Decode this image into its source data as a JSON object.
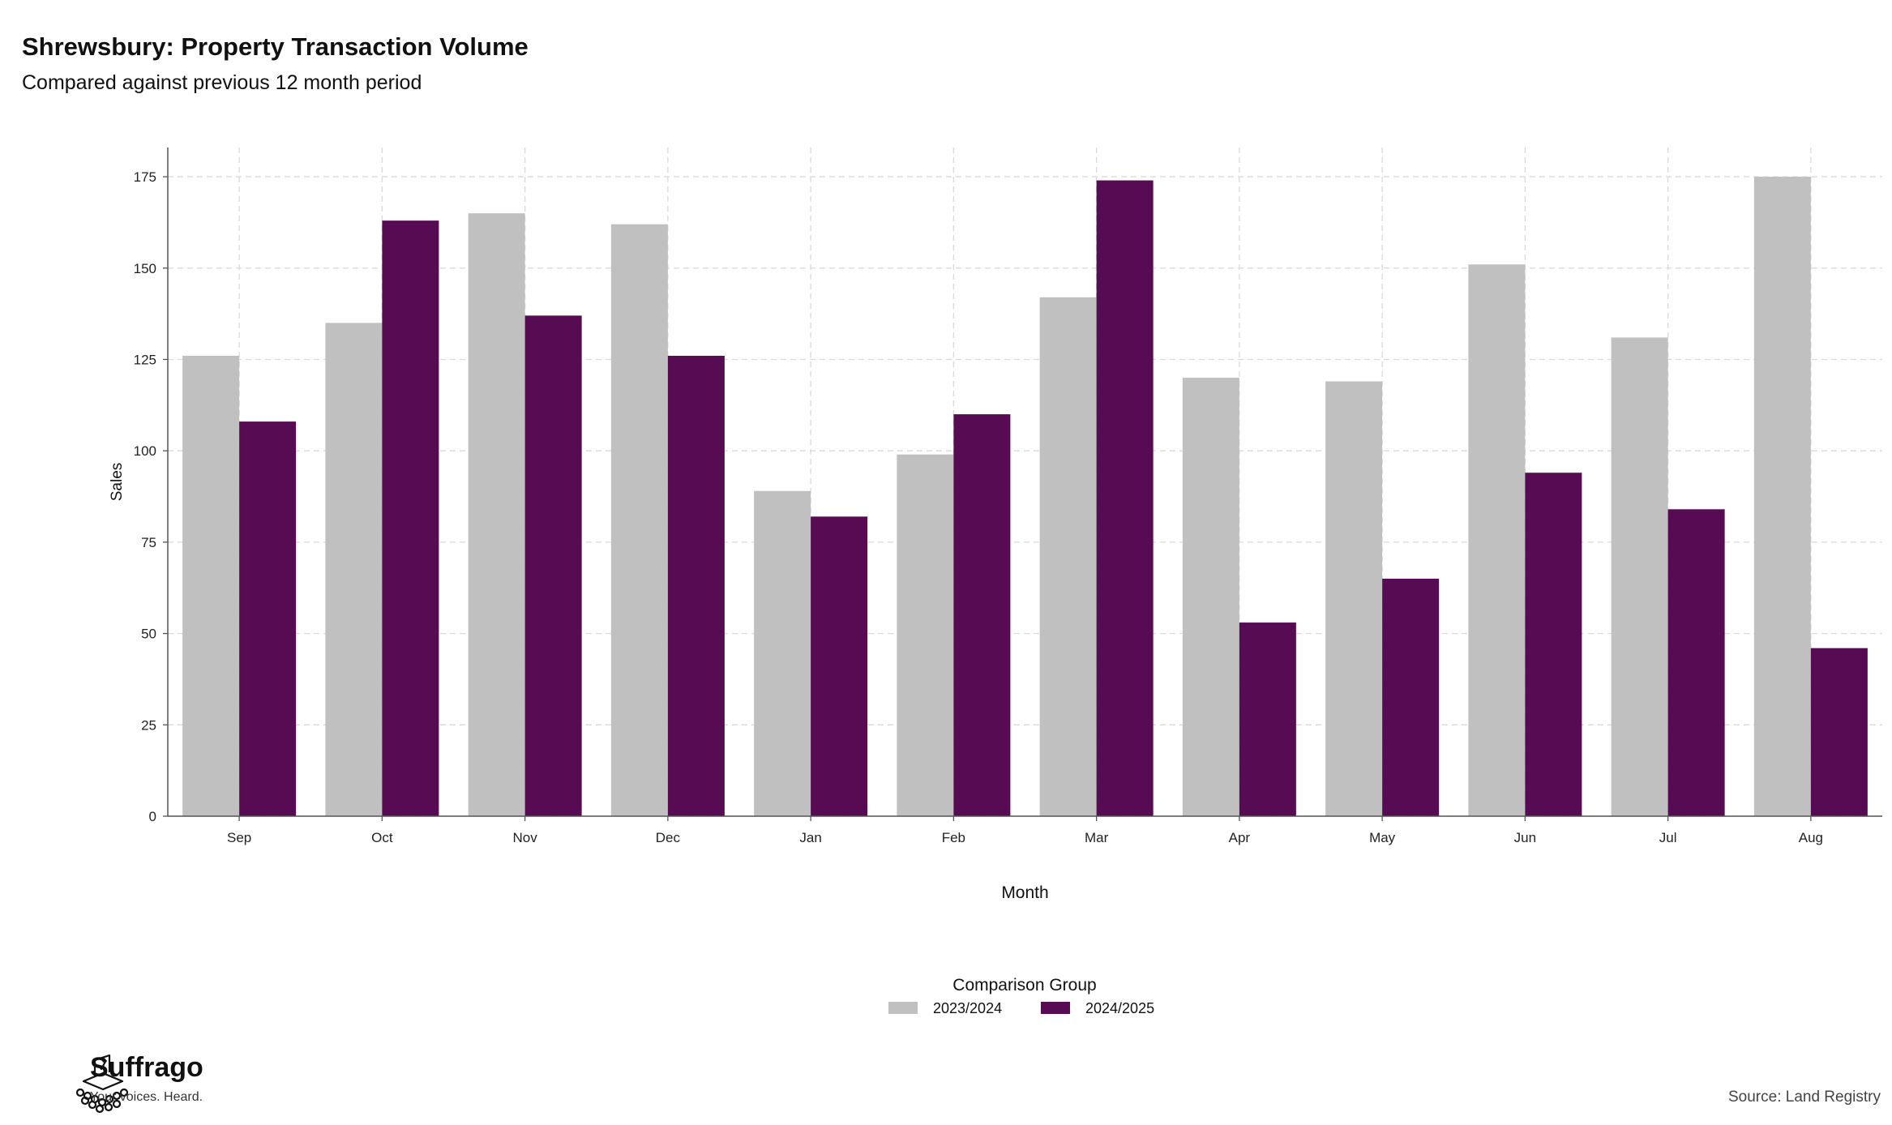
{
  "chart_data": {
    "type": "bar",
    "title": "Shrewsbury: Property Transaction Volume",
    "subtitle": "Compared against previous 12 month period",
    "xlabel": "Month",
    "ylabel": "Sales",
    "categories": [
      "Sep",
      "Oct",
      "Nov",
      "Dec",
      "Jan",
      "Feb",
      "Mar",
      "Apr",
      "May",
      "Jun",
      "Jul",
      "Aug"
    ],
    "series": [
      {
        "name": "2023/2024",
        "color": "#c0c0c0",
        "values": [
          126,
          135,
          165,
          162,
          89,
          99,
          142,
          120,
          119,
          151,
          131,
          175
        ]
      },
      {
        "name": "2024/2025",
        "color": "#560b52",
        "values": [
          108,
          163,
          137,
          126,
          82,
          110,
          174,
          53,
          65,
          94,
          84,
          46
        ]
      }
    ],
    "ylim": [
      0,
      183
    ],
    "yticks": [
      0,
      25,
      50,
      75,
      100,
      125,
      150,
      175
    ],
    "grid": true,
    "legend": {
      "title": "Comparison Group",
      "placement": "bottom-center"
    }
  },
  "branding": {
    "name": "Suffrago",
    "tagline": "Your voices. Heard."
  },
  "source": "Source: Land Registry"
}
